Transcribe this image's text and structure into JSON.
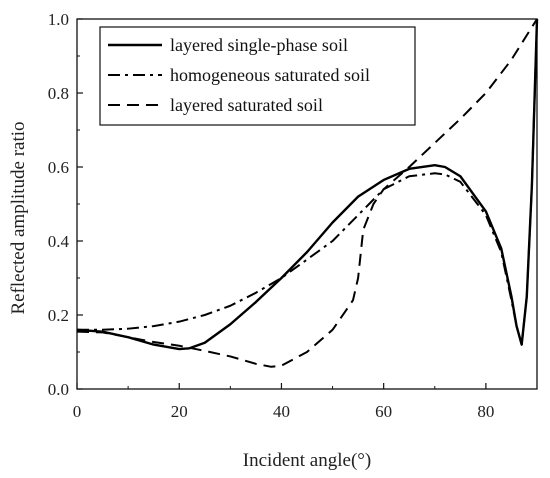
{
  "chart_data": {
    "type": "line",
    "xlabel": "Incident angle(°)",
    "ylabel": "Reflected amplitude ratio",
    "xlim": [
      0,
      90
    ],
    "ylim": [
      0.0,
      1.0
    ],
    "xticks": [
      0,
      20,
      40,
      60,
      80
    ],
    "yticks": [
      0.0,
      0.2,
      0.4,
      0.6,
      0.8,
      1.0
    ],
    "x_tick_labels": [
      "0",
      "20",
      "40",
      "60",
      "80"
    ],
    "y_tick_labels": [
      "0.0",
      "0.2",
      "0.4",
      "0.6",
      "0.8",
      "1.0"
    ],
    "grid": false,
    "legend_position": "top-left",
    "series": [
      {
        "name": "layered single-phase soil",
        "line_style": "solid",
        "x": [
          0,
          5,
          10,
          15,
          20,
          22,
          25,
          30,
          35,
          40,
          45,
          50,
          55,
          60,
          65,
          70,
          72,
          75,
          80,
          83,
          85,
          86,
          87,
          88,
          89,
          90
        ],
        "y": [
          0.16,
          0.155,
          0.14,
          0.12,
          0.108,
          0.11,
          0.125,
          0.175,
          0.235,
          0.3,
          0.37,
          0.45,
          0.52,
          0.565,
          0.595,
          0.605,
          0.6,
          0.575,
          0.48,
          0.38,
          0.25,
          0.17,
          0.12,
          0.25,
          0.55,
          1.0
        ]
      },
      {
        "name": "homogeneous saturated soil",
        "line_style": "dash-dot",
        "x": [
          0,
          5,
          10,
          15,
          20,
          25,
          30,
          35,
          40,
          45,
          50,
          55,
          60,
          65,
          70,
          72,
          75,
          80,
          83,
          85,
          86,
          87,
          88,
          89,
          90
        ],
        "y": [
          0.16,
          0.16,
          0.163,
          0.17,
          0.182,
          0.2,
          0.225,
          0.26,
          0.3,
          0.35,
          0.4,
          0.47,
          0.54,
          0.575,
          0.583,
          0.58,
          0.56,
          0.47,
          0.37,
          0.24,
          0.17,
          0.12,
          0.25,
          0.55,
          1.0
        ]
      },
      {
        "name": "layered saturated soil",
        "line_style": "dashed",
        "x": [
          0,
          5,
          10,
          15,
          20,
          25,
          30,
          35,
          38,
          40,
          45,
          50,
          54,
          55,
          56,
          58,
          60,
          65,
          70,
          75,
          80,
          85,
          90
        ],
        "y": [
          0.155,
          0.153,
          0.14,
          0.127,
          0.117,
          0.103,
          0.088,
          0.068,
          0.06,
          0.063,
          0.1,
          0.16,
          0.24,
          0.3,
          0.43,
          0.5,
          0.54,
          0.6,
          0.665,
          0.73,
          0.8,
          0.89,
          1.0
        ]
      }
    ]
  }
}
